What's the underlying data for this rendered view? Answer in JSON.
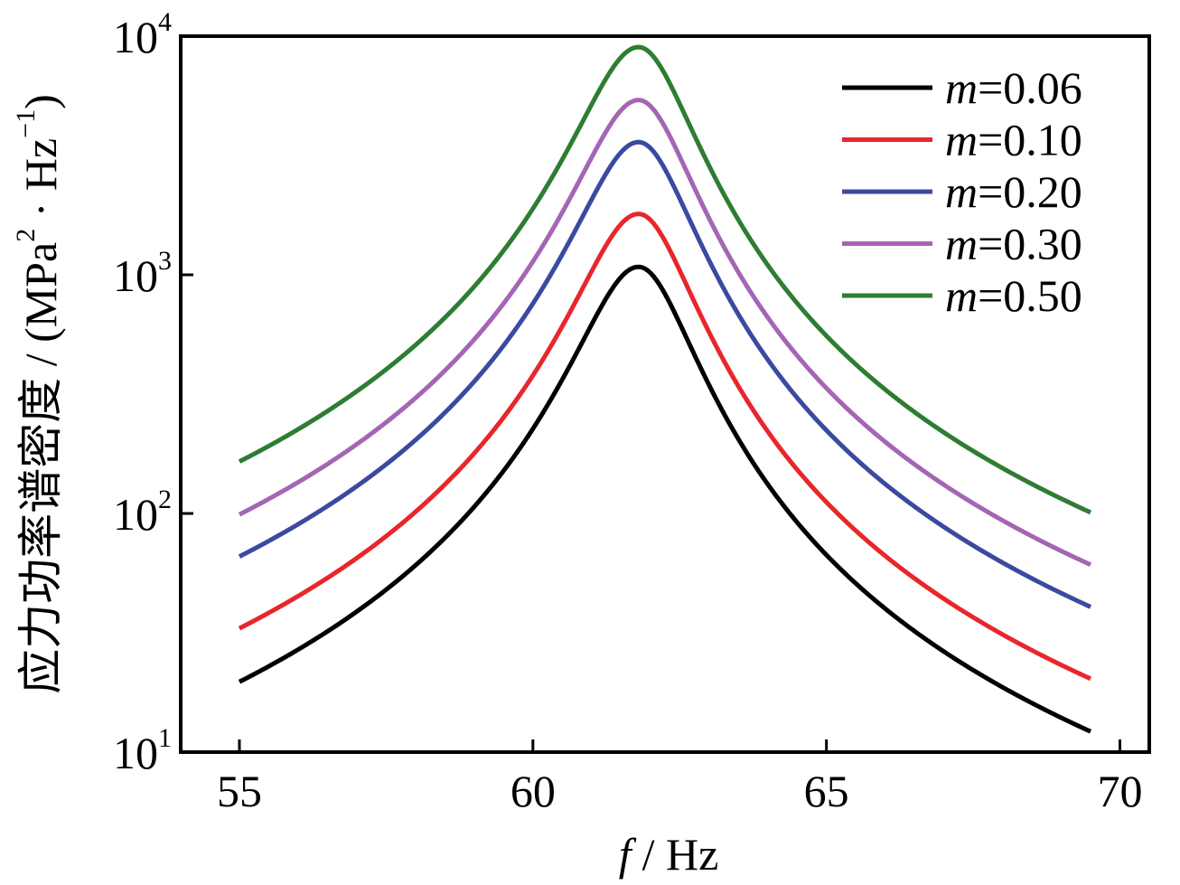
{
  "chart_data": {
    "type": "line",
    "title": "",
    "xlabel": {
      "var": "f",
      "unit": "/ Hz"
    },
    "ylabel": {
      "text": "应力功率谱密度 / (MPa",
      "sup1": "2",
      "mid": " · Hz",
      "sup2": "−1",
      "end": ")"
    },
    "xlim": [
      54,
      70.5
    ],
    "ylim": [
      10,
      10000
    ],
    "yscale": "log",
    "xticks": [
      55,
      60,
      65,
      70
    ],
    "xtick_labels": [
      "55",
      "60",
      "65",
      "70"
    ],
    "yticks": [
      {
        "value": 10,
        "base": "10",
        "exp": "1"
      },
      {
        "value": 100,
        "base": "10",
        "exp": "2"
      },
      {
        "value": 1000,
        "base": "10",
        "exp": "3"
      },
      {
        "value": 10000,
        "base": "10",
        "exp": "4"
      }
    ],
    "legend_position": "top-right",
    "x_range": [
      55,
      69.5
    ],
    "series": [
      {
        "name": "m=0.06",
        "var": "m",
        "value_label": "=0.06",
        "color": "#000000",
        "peak_x": 61.8,
        "peak_y": 1080,
        "start_y": 19.7,
        "end_y": 12.2
      },
      {
        "name": "m=0.10",
        "var": "m",
        "value_label": "=0.10",
        "color": "#e8262b",
        "peak_x": 61.8,
        "peak_y": 1800,
        "start_y": 33,
        "end_y": 20.3
      },
      {
        "name": "m=0.20",
        "var": "m",
        "value_label": "=0.20",
        "color": "#3a4aa0",
        "peak_x": 61.8,
        "peak_y": 3600,
        "start_y": 66,
        "end_y": 40.6
      },
      {
        "name": "m=0.30",
        "var": "m",
        "value_label": "=0.30",
        "color": "#a466b4",
        "peak_x": 61.8,
        "peak_y": 5400,
        "start_y": 99,
        "end_y": 61
      },
      {
        "name": "m=0.50",
        "var": "m",
        "value_label": "=0.50",
        "color": "#2e7d32",
        "peak_x": 61.8,
        "peak_y": 9000,
        "start_y": 165,
        "end_y": 101
      }
    ]
  }
}
